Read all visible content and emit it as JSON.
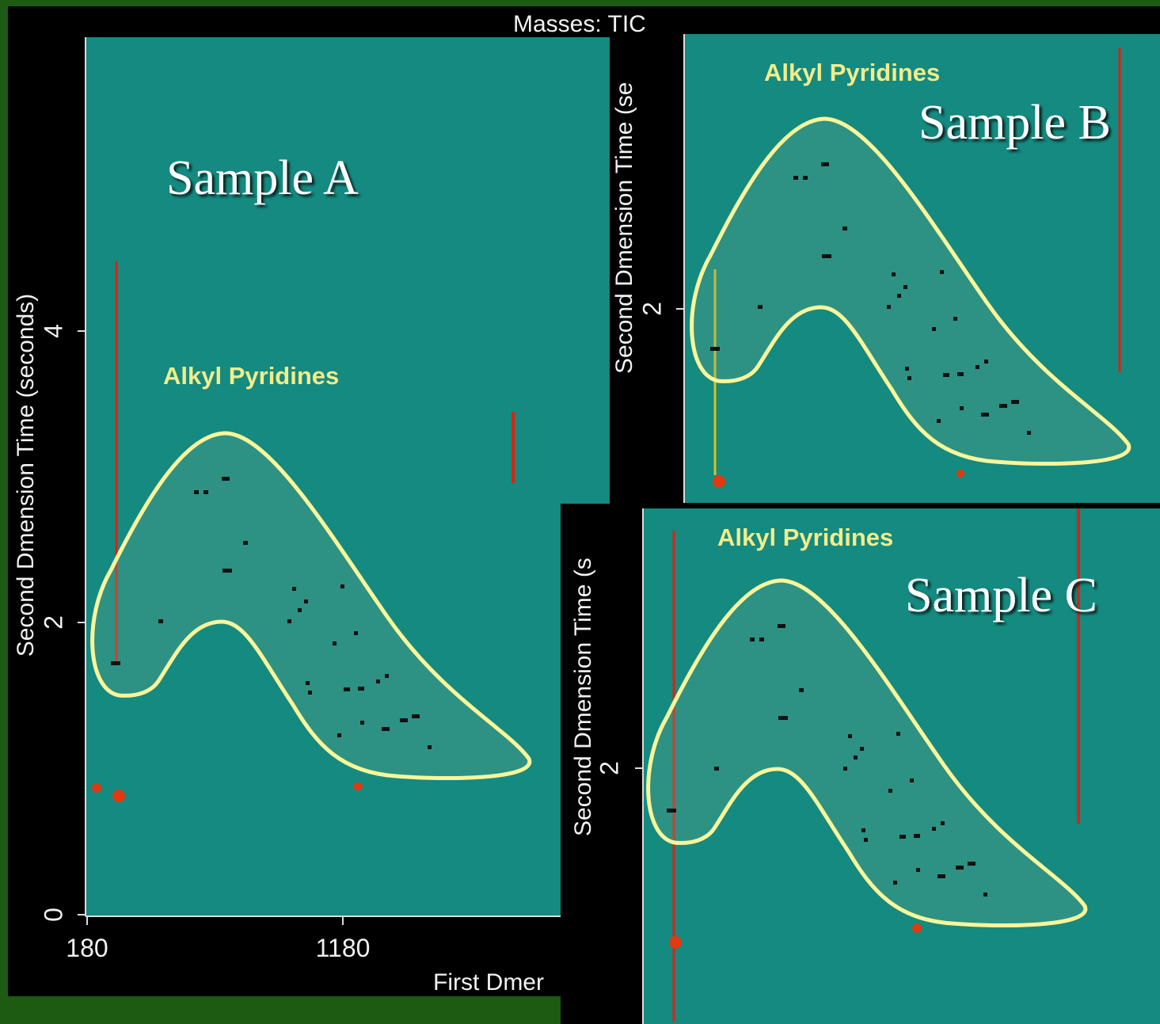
{
  "header": {
    "masses": "Masses: TIC"
  },
  "panels": [
    {
      "sample": "Sample A",
      "region": "Alkyl Pyridines",
      "y_axis_label": "Second Dmension Time (seconds)",
      "y_ticks": [
        "4",
        "2",
        "0"
      ],
      "x_ticks": [
        "180",
        "1180"
      ],
      "x_axis_label": "First Dmer"
    },
    {
      "sample": "Sample B",
      "region": "Alkyl Pyridines",
      "y_axis_label": "Second Dmension Time (se",
      "y_ticks": [
        "2"
      ]
    },
    {
      "sample": "Sample C",
      "region": "Alkyl Pyridines",
      "y_axis_label": "Second Dmension Time (s",
      "y_ticks": [
        "2"
      ]
    }
  ]
}
